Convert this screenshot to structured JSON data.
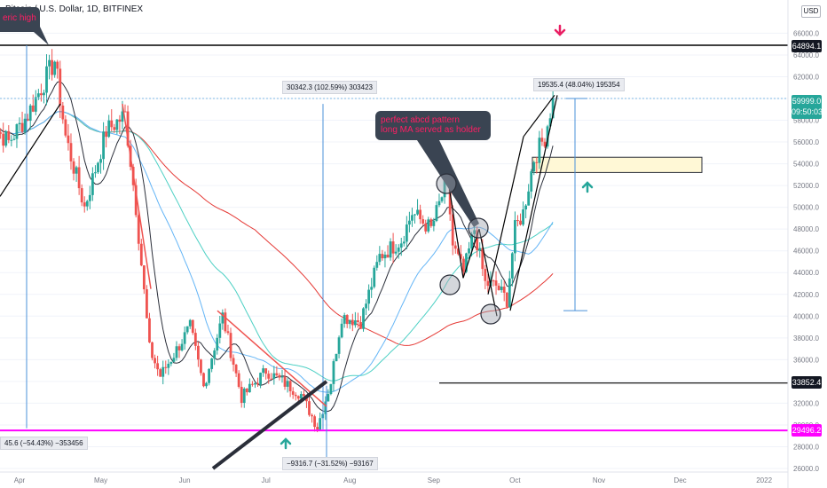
{
  "header": {
    "symbol_title": "Bitcoin / U.S. Dollar, 1D, BITFINEX",
    "currency": "USD"
  },
  "price_tags": {
    "top_line": "64894.1",
    "current_price": "59999.0",
    "countdown": "09:50:03",
    "mid_line": "33852.4",
    "bottom_line": "29496.2"
  },
  "annotations": {
    "range_left": "45.6 (−54.43%) −353456",
    "range_up": "30342.3 (102.59%) 303423",
    "range_right": "19535.4 (48.04%) 195354",
    "range_down": "−9316.7 (−31.52%) −93167",
    "callout_top_left": "eric high",
    "callout_abcd_line1": "perfect abcd pattern",
    "callout_abcd_line2": "long MA served as holder"
  },
  "colors": {
    "up": "#26a69a",
    "down": "#ef5350",
    "ma_red": "#e53935",
    "ma_teal": "#4dd0c4",
    "ma_blue": "#64b5f6",
    "ma_black": "#2a2e39",
    "magenta": "#ff00ff",
    "arrow_red": "#e91e63",
    "arrow_green": "#26a69a"
  },
  "chart_data": {
    "type": "candlestick",
    "y_axis_ticks": [
      "66000.0",
      "64000.0",
      "62000.0",
      "60000.0",
      "58000.0",
      "56000.0",
      "54000.0",
      "52000.0",
      "50000.0",
      "48000.0",
      "46000.0",
      "44000.0",
      "42000.0",
      "40000.0",
      "38000.0",
      "36000.0",
      "34000.0",
      "32000.0",
      "30000.0",
      "28000.0",
      "26000.0"
    ],
    "ylim": [
      25500,
      67500
    ],
    "x_axis_ticks": [
      "Apr",
      "May",
      "Jun",
      "Jul",
      "Aug",
      "Sep",
      "Oct",
      "Nov",
      "Dec",
      "2022"
    ],
    "horizontal_levels": [
      64894.1,
      33852.4,
      29496.2
    ],
    "current_price": 59999.0,
    "close_path": [
      {
        "date": "2021-03-20",
        "price": 58000
      },
      {
        "date": "2021-03-28",
        "price": 56000
      },
      {
        "date": "2021-04-04",
        "price": 58500
      },
      {
        "date": "2021-04-14",
        "price": 63500
      },
      {
        "date": "2021-04-18",
        "price": 56500
      },
      {
        "date": "2021-04-25",
        "price": 50000
      },
      {
        "date": "2021-05-03",
        "price": 57000
      },
      {
        "date": "2021-05-10",
        "price": 58500
      },
      {
        "date": "2021-05-14",
        "price": 50000
      },
      {
        "date": "2021-05-19",
        "price": 37000
      },
      {
        "date": "2021-05-23",
        "price": 34500
      },
      {
        "date": "2021-05-28",
        "price": 36500
      },
      {
        "date": "2021-06-03",
        "price": 39000
      },
      {
        "date": "2021-06-08",
        "price": 33500
      },
      {
        "date": "2021-06-15",
        "price": 40000
      },
      {
        "date": "2021-06-22",
        "price": 32500
      },
      {
        "date": "2021-07-01",
        "price": 35000
      },
      {
        "date": "2021-07-07",
        "price": 34000
      },
      {
        "date": "2021-07-14",
        "price": 32800
      },
      {
        "date": "2021-07-20",
        "price": 29800
      },
      {
        "date": "2021-07-25",
        "price": 34000
      },
      {
        "date": "2021-07-29",
        "price": 40000
      },
      {
        "date": "2021-08-05",
        "price": 39500
      },
      {
        "date": "2021-08-12",
        "price": 45500
      },
      {
        "date": "2021-08-20",
        "price": 47000
      },
      {
        "date": "2021-08-24",
        "price": 49500
      },
      {
        "date": "2021-08-31",
        "price": 48000
      },
      {
        "date": "2021-09-06",
        "price": 52500
      },
      {
        "date": "2021-09-08",
        "price": 46500
      },
      {
        "date": "2021-09-12",
        "price": 44000
      },
      {
        "date": "2021-09-16",
        "price": 48000
      },
      {
        "date": "2021-09-20",
        "price": 43000
      },
      {
        "date": "2021-09-24",
        "price": 42800
      },
      {
        "date": "2021-09-28",
        "price": 41500
      },
      {
        "date": "2021-10-01",
        "price": 48000
      },
      {
        "date": "2021-10-04",
        "price": 49500
      },
      {
        "date": "2021-10-08",
        "price": 54500
      },
      {
        "date": "2021-10-12",
        "price": 56500
      },
      {
        "date": "2021-10-15",
        "price": 59999
      }
    ]
  }
}
